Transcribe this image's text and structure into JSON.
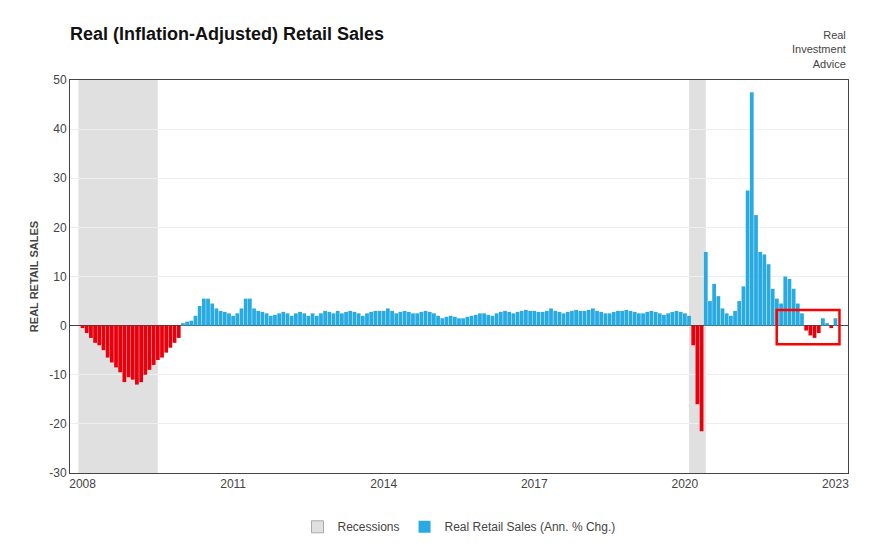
{
  "chart_data": {
    "type": "bar",
    "title": "Real (Inflation-Adjusted) Retail Sales",
    "ylabel": "REAL RETAIL SALES",
    "x": [
      2008.0,
      2008.083,
      2008.167,
      2008.25,
      2008.333,
      2008.417,
      2008.5,
      2008.583,
      2008.667,
      2008.75,
      2008.833,
      2008.917,
      2009.0,
      2009.083,
      2009.167,
      2009.25,
      2009.333,
      2009.417,
      2009.5,
      2009.583,
      2009.667,
      2009.75,
      2009.833,
      2009.917,
      2010.0,
      2010.083,
      2010.167,
      2010.25,
      2010.333,
      2010.417,
      2010.5,
      2010.583,
      2010.667,
      2010.75,
      2010.833,
      2010.917,
      2011.0,
      2011.083,
      2011.167,
      2011.25,
      2011.333,
      2011.417,
      2011.5,
      2011.583,
      2011.667,
      2011.75,
      2011.833,
      2011.917,
      2012.0,
      2012.083,
      2012.167,
      2012.25,
      2012.333,
      2012.417,
      2012.5,
      2012.583,
      2012.667,
      2012.75,
      2012.833,
      2012.917,
      2013.0,
      2013.083,
      2013.167,
      2013.25,
      2013.333,
      2013.417,
      2013.5,
      2013.583,
      2013.667,
      2013.75,
      2013.833,
      2013.917,
      2014.0,
      2014.083,
      2014.167,
      2014.25,
      2014.333,
      2014.417,
      2014.5,
      2014.583,
      2014.667,
      2014.75,
      2014.833,
      2014.917,
      2015.0,
      2015.083,
      2015.167,
      2015.25,
      2015.333,
      2015.417,
      2015.5,
      2015.583,
      2015.667,
      2015.75,
      2015.833,
      2015.917,
      2016.0,
      2016.083,
      2016.167,
      2016.25,
      2016.333,
      2016.417,
      2016.5,
      2016.583,
      2016.667,
      2016.75,
      2016.833,
      2016.917,
      2017.0,
      2017.083,
      2017.167,
      2017.25,
      2017.333,
      2017.417,
      2017.5,
      2017.583,
      2017.667,
      2017.75,
      2017.833,
      2017.917,
      2018.0,
      2018.083,
      2018.167,
      2018.25,
      2018.333,
      2018.417,
      2018.5,
      2018.583,
      2018.667,
      2018.75,
      2018.833,
      2018.917,
      2019.0,
      2019.083,
      2019.167,
      2019.25,
      2019.333,
      2019.417,
      2019.5,
      2019.583,
      2019.667,
      2019.75,
      2019.833,
      2019.917,
      2020.0,
      2020.083,
      2020.167,
      2020.25,
      2020.333,
      2020.417,
      2020.5,
      2020.583,
      2020.667,
      2020.75,
      2020.833,
      2020.917,
      2021.0,
      2021.083,
      2021.167,
      2021.25,
      2021.333,
      2021.417,
      2021.5,
      2021.583,
      2021.667,
      2021.75,
      2021.833,
      2021.917,
      2022.0,
      2022.083,
      2022.167,
      2022.25,
      2022.333,
      2022.417,
      2022.5,
      2022.583,
      2022.667,
      2022.75,
      2022.833,
      2022.917,
      2023.0
    ],
    "series": [
      {
        "name": "Real Retail Sales (Ann. % Chg.)",
        "color": "#29ABE2",
        "values": [
          -0.5,
          -1.5,
          -2.5,
          -3.5,
          -4.0,
          -5.0,
          -6.5,
          -7.5,
          -8.5,
          -9.5,
          -11.5,
          -10.5,
          -11.0,
          -12.0,
          -11.5,
          -10.0,
          -9.0,
          -8.0,
          -7.0,
          -6.5,
          -5.5,
          -4.5,
          -3.5,
          -2.5,
          0.5,
          0.8,
          1.0,
          2.0,
          4.0,
          5.5,
          5.5,
          4.5,
          3.5,
          3.0,
          2.8,
          2.5,
          2.0,
          2.5,
          3.5,
          5.5,
          5.5,
          3.5,
          3.0,
          2.8,
          2.5,
          2.0,
          2.2,
          2.5,
          2.8,
          2.5,
          2.0,
          2.5,
          2.8,
          2.5,
          2.0,
          2.5,
          2.0,
          2.5,
          3.0,
          2.8,
          2.5,
          3.0,
          2.5,
          2.8,
          3.0,
          2.8,
          2.5,
          2.0,
          2.5,
          2.8,
          3.0,
          3.0,
          3.0,
          3.5,
          3.0,
          2.5,
          2.8,
          3.0,
          2.8,
          2.5,
          2.5,
          2.8,
          3.0,
          2.8,
          2.5,
          2.0,
          1.5,
          1.8,
          2.0,
          1.8,
          1.5,
          1.5,
          1.8,
          2.0,
          2.2,
          2.5,
          2.5,
          2.2,
          2.0,
          2.5,
          2.8,
          3.0,
          2.8,
          2.5,
          2.8,
          3.0,
          3.2,
          3.0,
          3.0,
          2.8,
          2.8,
          3.0,
          3.5,
          3.0,
          2.8,
          2.5,
          2.8,
          3.0,
          3.2,
          3.0,
          3.0,
          3.2,
          3.5,
          3.0,
          2.8,
          2.5,
          2.5,
          2.8,
          3.0,
          3.0,
          3.2,
          3.0,
          2.8,
          2.5,
          2.5,
          2.8,
          3.0,
          2.8,
          2.5,
          2.2,
          2.5,
          2.8,
          3.0,
          2.8,
          2.5,
          2.0,
          -4.0,
          -16.0,
          -21.5,
          15.0,
          5.0,
          8.5,
          6.0,
          3.5,
          2.5,
          2.0,
          3.0,
          5.0,
          8.0,
          27.5,
          47.5,
          22.5,
          15.0,
          14.5,
          12.5,
          7.5,
          5.5,
          4.5,
          10.0,
          9.5,
          7.5,
          4.5,
          2.5,
          -1.0,
          -2.0,
          -2.5,
          -1.5,
          1.5,
          0.5,
          -0.5,
          1.5
        ],
        "colors": [
          "#E8000D",
          "#E8000D",
          "#E8000D",
          "#E8000D",
          "#E8000D",
          "#E8000D",
          "#E8000D",
          "#E8000D",
          "#E8000D",
          "#E8000D",
          "#E8000D",
          "#E8000D",
          "#E8000D",
          "#E8000D",
          "#E8000D",
          "#E8000D",
          "#E8000D",
          "#E8000D",
          "#E8000D",
          "#E8000D",
          "#E8000D",
          "#E8000D",
          "#E8000D",
          "#E8000D",
          "#29ABE2",
          "#29ABE2",
          "#29ABE2",
          "#29ABE2",
          "#29ABE2",
          "#29ABE2",
          "#29ABE2",
          "#29ABE2",
          "#29ABE2",
          "#29ABE2",
          "#29ABE2",
          "#29ABE2",
          "#29ABE2",
          "#29ABE2",
          "#29ABE2",
          "#29ABE2",
          "#29ABE2",
          "#29ABE2",
          "#29ABE2",
          "#29ABE2",
          "#29ABE2",
          "#29ABE2",
          "#29ABE2",
          "#29ABE2",
          "#29ABE2",
          "#29ABE2",
          "#29ABE2",
          "#29ABE2",
          "#29ABE2",
          "#29ABE2",
          "#29ABE2",
          "#29ABE2",
          "#29ABE2",
          "#29ABE2",
          "#29ABE2",
          "#29ABE2",
          "#29ABE2",
          "#29ABE2",
          "#29ABE2",
          "#29ABE2",
          "#29ABE2",
          "#29ABE2",
          "#29ABE2",
          "#29ABE2",
          "#29ABE2",
          "#29ABE2",
          "#29ABE2",
          "#29ABE2",
          "#29ABE2",
          "#29ABE2",
          "#29ABE2",
          "#29ABE2",
          "#29ABE2",
          "#29ABE2",
          "#29ABE2",
          "#29ABE2",
          "#29ABE2",
          "#29ABE2",
          "#29ABE2",
          "#29ABE2",
          "#29ABE2",
          "#29ABE2",
          "#29ABE2",
          "#29ABE2",
          "#29ABE2",
          "#29ABE2",
          "#29ABE2",
          "#29ABE2",
          "#29ABE2",
          "#29ABE2",
          "#29ABE2",
          "#29ABE2",
          "#29ABE2",
          "#29ABE2",
          "#29ABE2",
          "#29ABE2",
          "#29ABE2",
          "#29ABE2",
          "#29ABE2",
          "#29ABE2",
          "#29ABE2",
          "#29ABE2",
          "#29ABE2",
          "#29ABE2",
          "#29ABE2",
          "#29ABE2",
          "#29ABE2",
          "#29ABE2",
          "#29ABE2",
          "#29ABE2",
          "#29ABE2",
          "#29ABE2",
          "#29ABE2",
          "#29ABE2",
          "#29ABE2",
          "#29ABE2",
          "#29ABE2",
          "#29ABE2",
          "#29ABE2",
          "#29ABE2",
          "#29ABE2",
          "#29ABE2",
          "#29ABE2",
          "#29ABE2",
          "#29ABE2",
          "#29ABE2",
          "#29ABE2",
          "#29ABE2",
          "#29ABE2",
          "#29ABE2",
          "#29ABE2",
          "#29ABE2",
          "#29ABE2",
          "#29ABE2",
          "#29ABE2",
          "#29ABE2",
          "#29ABE2",
          "#29ABE2",
          "#29ABE2",
          "#29ABE2",
          "#29ABE2",
          "#29ABE2",
          "#E8000D",
          "#E8000D",
          "#E8000D",
          "#29ABE2",
          "#29ABE2",
          "#29ABE2",
          "#29ABE2",
          "#29ABE2",
          "#29ABE2",
          "#29ABE2",
          "#29ABE2",
          "#29ABE2",
          "#29ABE2",
          "#29ABE2",
          "#29ABE2",
          "#29ABE2",
          "#29ABE2",
          "#29ABE2",
          "#29ABE2",
          "#29ABE2",
          "#29ABE2",
          "#29ABE2",
          "#29ABE2",
          "#29ABE2",
          "#29ABE2",
          "#29ABE2",
          "#29ABE2",
          "#E8000D",
          "#E8000D",
          "#E8000D",
          "#E8000D",
          "#29ABE2",
          "#29ABE2",
          "#E8000D",
          "#29ABE2"
        ]
      }
    ],
    "recessions": {
      "name": "Recessions",
      "color": "#E0E0E0",
      "spans": [
        {
          "start": 2007.917,
          "end": 2009.5
        },
        {
          "start": 2020.083,
          "end": 2020.417
        }
      ]
    },
    "highlight_box": {
      "x0": 2021.83,
      "x1": 2023.08,
      "y0": -3.8,
      "y1": 3.2,
      "color": "red"
    },
    "annotations": [
      {
        "text": "Real\nInvestment\nAdvice"
      }
    ],
    "xlim": [
      2007.75,
      2023.25
    ],
    "xticks": [
      2008,
      2011,
      2014,
      2017,
      2020,
      2023
    ],
    "ylim": [
      -30,
      50
    ],
    "yticks": [
      -30,
      -20,
      -10,
      0,
      10,
      20,
      30,
      40,
      50
    ],
    "grid": "y",
    "legend": "bottom"
  }
}
